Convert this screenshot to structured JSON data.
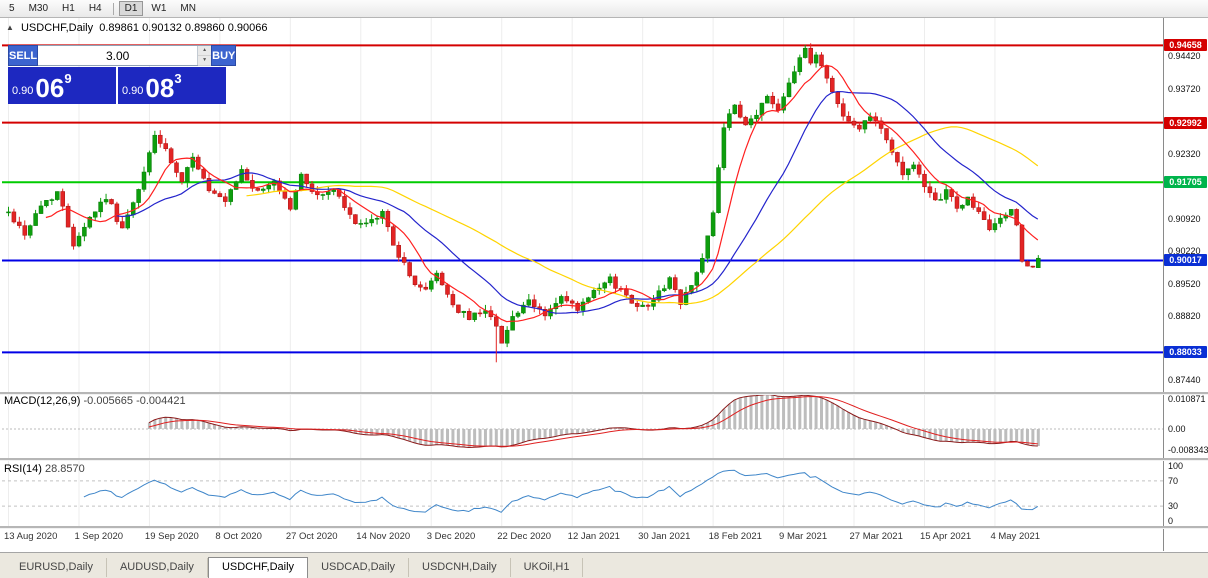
{
  "toolbar": {
    "timeframes": [
      {
        "label": "5"
      },
      {
        "label": "M30"
      },
      {
        "label": "H1"
      },
      {
        "label": "H4"
      },
      {
        "label": "D1",
        "active": true,
        "separator_before": true
      },
      {
        "label": "W1"
      },
      {
        "label": "MN"
      }
    ]
  },
  "chart": {
    "symbol": "USDCHF,Daily",
    "open": "0.89861",
    "high": "0.90132",
    "low": "0.89860",
    "close": "0.90066"
  },
  "trade_panel": {
    "sell_label": "SELL",
    "buy_label": "BUY",
    "volume": "3.00",
    "sell_price_main": "0.90",
    "sell_price_big": "06",
    "sell_price_sup": "9",
    "buy_price_main": "0.90",
    "buy_price_big": "08",
    "buy_price_sup": "3"
  },
  "price_axis": {
    "ticks": [
      {
        "label": "0.94420",
        "price": 0.9442
      },
      {
        "label": "0.93720",
        "price": 0.9372
      },
      {
        "label": "0.92320",
        "price": 0.9232
      },
      {
        "label": "0.90920",
        "price": 0.9092
      },
      {
        "label": "0.90220",
        "price": 0.9022
      },
      {
        "label": "0.89520",
        "price": 0.8952
      },
      {
        "label": "0.88820",
        "price": 0.8882
      },
      {
        "label": "0.87440",
        "price": 0.8744
      }
    ],
    "badges": [
      {
        "label": "0.94658",
        "price": 0.94658,
        "bg": "#d40000"
      },
      {
        "label": "0.92992",
        "price": 0.92992,
        "bg": "#d40000"
      },
      {
        "label": "0.91705",
        "price": 0.91705,
        "bg": "#00b44c"
      },
      {
        "label": "0.90017",
        "price": 0.90017,
        "bg": "#0a2fd4"
      },
      {
        "label": "0.88033",
        "price": 0.88033,
        "bg": "#0a2fd4"
      }
    ]
  },
  "levels": [
    {
      "price": 0.94658,
      "color": "#d40000"
    },
    {
      "price": 0.92992,
      "color": "#d40000"
    },
    {
      "price": 0.91705,
      "color": "#00cc00"
    },
    {
      "price": 0.90017,
      "color": "#0000e6"
    },
    {
      "price": 0.88033,
      "color": "#0000e6"
    }
  ],
  "date_axis": [
    {
      "label": "13 Aug 2020",
      "index": 0
    },
    {
      "label": "1 Sep 2020",
      "index": 13
    },
    {
      "label": "19 Sep 2020",
      "index": 26
    },
    {
      "label": "8 Oct 2020",
      "index": 39
    },
    {
      "label": "27 Oct 2020",
      "index": 52
    },
    {
      "label": "14 Nov 2020",
      "index": 65
    },
    {
      "label": "3 Dec 2020",
      "index": 78
    },
    {
      "label": "22 Dec 2020",
      "index": 91
    },
    {
      "label": "12 Jan 2021",
      "index": 104
    },
    {
      "label": "30 Jan 2021",
      "index": 117
    },
    {
      "label": "18 Feb 2021",
      "index": 130
    },
    {
      "label": "9 Mar 2021",
      "index": 143
    },
    {
      "label": "27 Mar 2021",
      "index": 156
    },
    {
      "label": "15 Apr 2021",
      "index": 169
    },
    {
      "label": "4 May 2021",
      "index": 182
    }
  ],
  "macd": {
    "name": "MACD(12,26,9)",
    "value1": "-0.005665",
    "value2": "-0.004421",
    "axis_top": "0.010871",
    "axis_zero": "0.00",
    "axis_bottom": "-0.008343"
  },
  "rsi": {
    "name": "RSI(14)",
    "value": "28.8570",
    "axis": [
      "100",
      "70",
      "30",
      "0"
    ]
  },
  "tabs": [
    {
      "label": "EURUSD,Daily"
    },
    {
      "label": "AUDUSD,Daily"
    },
    {
      "label": "USDCHF,Daily",
      "active": true
    },
    {
      "label": "USDCAD,Daily"
    },
    {
      "label": "USDCNH,Daily"
    },
    {
      "label": "UKOil,H1"
    }
  ],
  "chart_data": {
    "type": "candlestick",
    "symbol": "USDCHF",
    "timeframe": "Daily",
    "last_ohlc": {
      "open": 0.89861,
      "high": 0.90132,
      "low": 0.8986,
      "close": 0.90066
    },
    "price_range": [
      0.872,
      0.9525
    ],
    "candle_count": 191,
    "seed": 42,
    "jitter": 0.0016,
    "anchors": [
      [
        0,
        0.9105
      ],
      [
        3,
        0.906
      ],
      [
        6,
        0.912
      ],
      [
        9,
        0.915
      ],
      [
        12,
        0.904
      ],
      [
        15,
        0.9095
      ],
      [
        18,
        0.914
      ],
      [
        21,
        0.907
      ],
      [
        24,
        0.915
      ],
      [
        27,
        0.9275
      ],
      [
        29,
        0.9235
      ],
      [
        32,
        0.9165
      ],
      [
        34,
        0.923
      ],
      [
        37,
        0.915
      ],
      [
        40,
        0.9125
      ],
      [
        43,
        0.9195
      ],
      [
        46,
        0.9145
      ],
      [
        49,
        0.9175
      ],
      [
        52,
        0.9115
      ],
      [
        54,
        0.9185
      ],
      [
        57,
        0.914
      ],
      [
        60,
        0.9155
      ],
      [
        63,
        0.9095
      ],
      [
        66,
        0.9075
      ],
      [
        69,
        0.9105
      ],
      [
        71,
        0.904
      ],
      [
        74,
        0.8965
      ],
      [
        77,
        0.8935
      ],
      [
        79,
        0.8975
      ],
      [
        82,
        0.8905
      ],
      [
        85,
        0.8875
      ],
      [
        88,
        0.89
      ],
      [
        90,
        0.8855
      ],
      [
        91,
        0.883
      ],
      [
        93,
        0.888
      ],
      [
        96,
        0.891
      ],
      [
        99,
        0.8885
      ],
      [
        102,
        0.892
      ],
      [
        105,
        0.8895
      ],
      [
        108,
        0.893
      ],
      [
        111,
        0.896
      ],
      [
        114,
        0.8925
      ],
      [
        117,
        0.89
      ],
      [
        120,
        0.893
      ],
      [
        122,
        0.8965
      ],
      [
        124,
        0.8905
      ],
      [
        126,
        0.8955
      ],
      [
        128,
        0.9005
      ],
      [
        130,
        0.91
      ],
      [
        132,
        0.9295
      ],
      [
        134,
        0.933
      ],
      [
        136,
        0.929
      ],
      [
        138,
        0.932
      ],
      [
        140,
        0.9355
      ],
      [
        142,
        0.933
      ],
      [
        144,
        0.939
      ],
      [
        146,
        0.944
      ],
      [
        147,
        0.946
      ],
      [
        148,
        0.942
      ],
      [
        149,
        0.945
      ],
      [
        151,
        0.9395
      ],
      [
        153,
        0.934
      ],
      [
        155,
        0.93
      ],
      [
        157,
        0.9285
      ],
      [
        159,
        0.932
      ],
      [
        161,
        0.929
      ],
      [
        163,
        0.9235
      ],
      [
        165,
        0.9185
      ],
      [
        167,
        0.9215
      ],
      [
        169,
        0.9155
      ],
      [
        171,
        0.9125
      ],
      [
        173,
        0.9155
      ],
      [
        175,
        0.9115
      ],
      [
        177,
        0.9135
      ],
      [
        179,
        0.9105
      ],
      [
        181,
        0.9065
      ],
      [
        183,
        0.9095
      ],
      [
        185,
        0.911
      ],
      [
        186,
        0.908
      ],
      [
        187,
        0.9
      ],
      [
        188,
        0.899
      ],
      [
        189,
        0.8986
      ],
      [
        190,
        0.90066
      ]
    ],
    "spikes": [
      {
        "index": 90,
        "low": 0.8782
      },
      {
        "index": 147,
        "high": 0.9467
      }
    ],
    "ma": [
      {
        "period": 45,
        "color": "#ffd400"
      },
      {
        "period": 21,
        "color": "#2424cc"
      },
      {
        "period": 8,
        "color": "#ff2020"
      }
    ],
    "macd": {
      "fast": 12,
      "slow": 26,
      "signal": 9,
      "range": [
        -0.0085,
        0.011
      ]
    },
    "rsi": {
      "period": 14,
      "range": [
        0,
        100
      ],
      "levels": [
        70,
        30
      ]
    }
  }
}
